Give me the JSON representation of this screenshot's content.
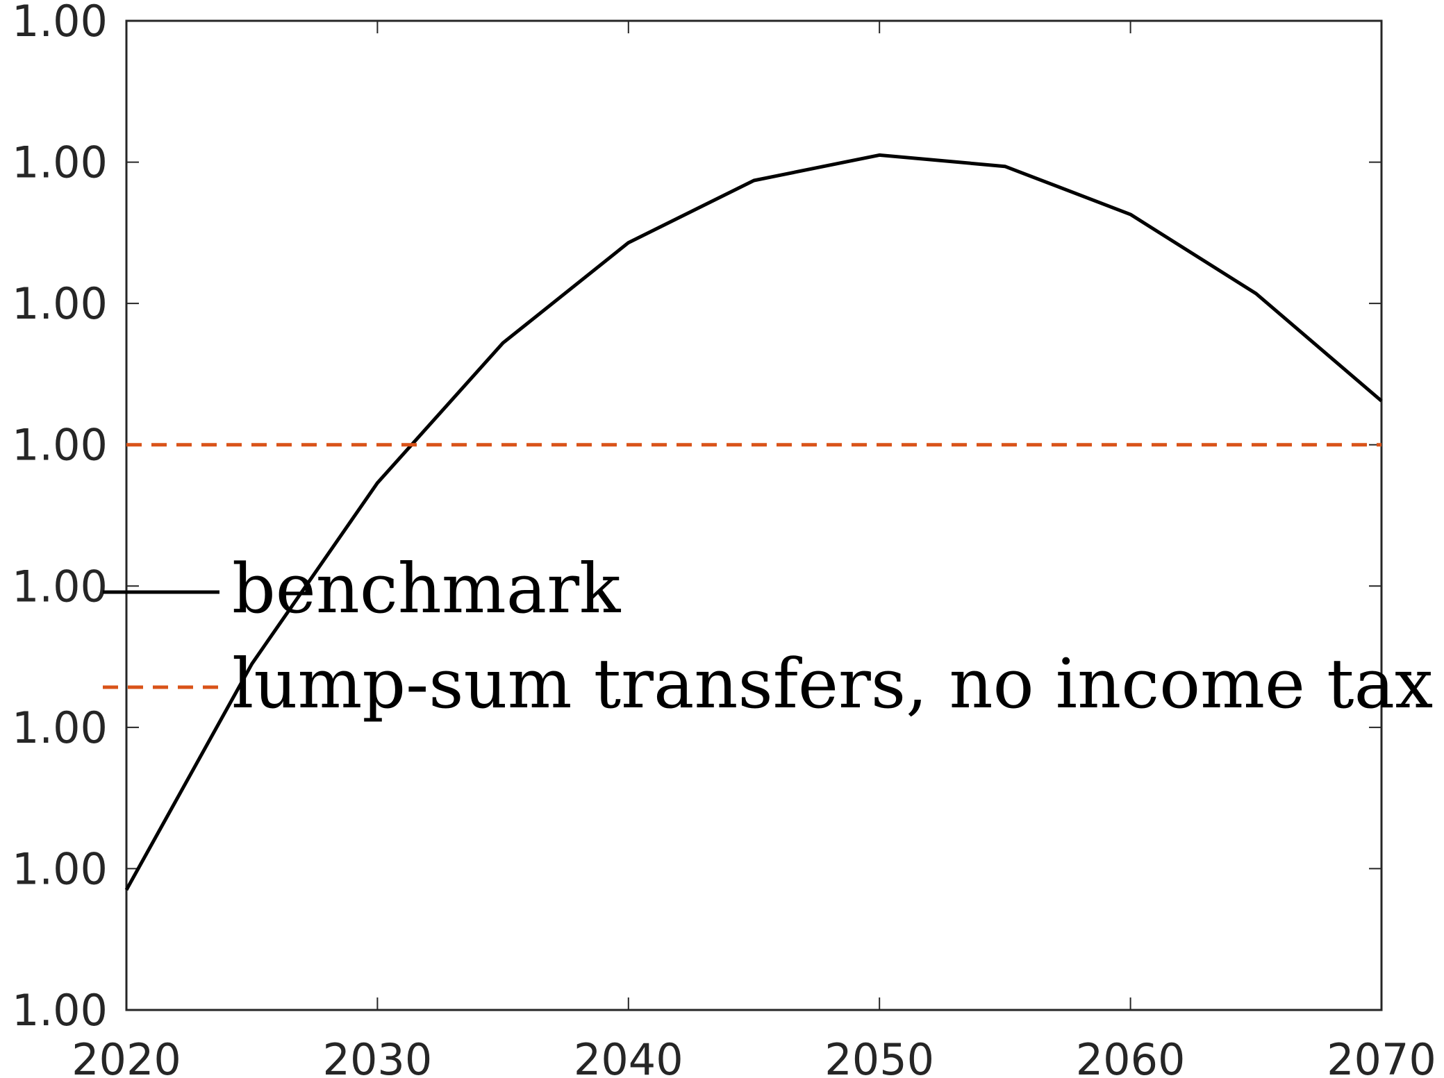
{
  "chart_data": {
    "type": "line",
    "title": "",
    "xlabel": "",
    "ylabel": "",
    "xlim": [
      2020,
      2070
    ],
    "x_ticks": [
      "2020",
      "2030",
      "2040",
      "2050",
      "2060",
      "2070"
    ],
    "y_ticks": [
      "1.00",
      "1.00",
      "1.00",
      "1.00",
      "1.00",
      "1.00",
      "1.00",
      "1.00"
    ],
    "ylim": [
      0,
      7
    ],
    "grid": false,
    "legend_position": "center-left",
    "series": [
      {
        "name": "benchmark",
        "color": "#000000",
        "style": "solid",
        "x": [
          2020,
          2025,
          2030,
          2035,
          2040,
          2045,
          2050,
          2055,
          2060,
          2065,
          2070
        ],
        "y": [
          0.85,
          2.45,
          3.73,
          4.72,
          5.43,
          5.87,
          6.05,
          5.97,
          5.63,
          5.07,
          4.31
        ]
      },
      {
        "name": "lump-sum transfers, no income tax",
        "color": "#D95319",
        "style": "dashed",
        "x": [
          2020,
          2070
        ],
        "y": [
          4.0,
          4.0
        ]
      }
    ]
  }
}
